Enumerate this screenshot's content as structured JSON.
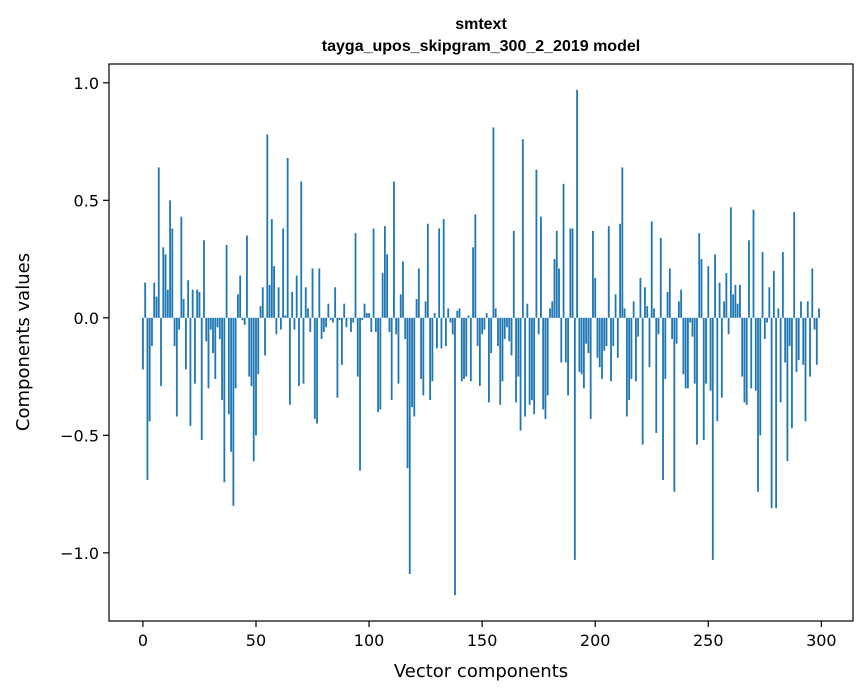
{
  "chart_data": {
    "type": "bar",
    "title_line1": "smtext",
    "title_line2": "tayga_upos_skipgram_300_2_2019 model",
    "xlabel": "Vector components",
    "ylabel": "Components values",
    "xlim": [
      -15,
      314
    ],
    "ylim": [
      -1.29,
      1.08
    ],
    "xticks": [
      0,
      50,
      100,
      150,
      200,
      250,
      300
    ],
    "xtick_labels": [
      "0",
      "50",
      "100",
      "150",
      "200",
      "250",
      "300"
    ],
    "yticks": [
      -1.0,
      -0.5,
      0.0,
      0.5,
      1.0
    ],
    "ytick_labels": [
      "−1.0",
      "−0.5",
      "0.0",
      "0.5",
      "1.0"
    ],
    "bar_color": "#1f77b4",
    "values": [
      -0.22,
      0.15,
      -0.69,
      -0.44,
      -0.12,
      0.15,
      0.09,
      0.64,
      -0.29,
      0.3,
      0.27,
      0.12,
      0.5,
      0.38,
      -0.12,
      -0.42,
      -0.05,
      0.43,
      0.08,
      -0.22,
      0.16,
      -0.46,
      0.12,
      -0.28,
      0.12,
      0.11,
      -0.52,
      0.33,
      -0.1,
      -0.3,
      -0.05,
      -0.15,
      -0.26,
      -0.04,
      -0.09,
      -0.35,
      -0.7,
      0.31,
      -0.41,
      -0.57,
      -0.8,
      -0.3,
      0.1,
      0.18,
      -0.01,
      -0.03,
      0.35,
      -0.25,
      -0.29,
      -0.61,
      -0.5,
      -0.24,
      0.05,
      0.13,
      -0.16,
      0.78,
      0.14,
      0.42,
      0.22,
      -0.07,
      0.13,
      -0.05,
      0.38,
      0.01,
      0.68,
      -0.37,
      0.11,
      -0.05,
      0.18,
      -0.29,
      0.58,
      -0.28,
      0.13,
      0.04,
      -0.06,
      0.21,
      -0.43,
      -0.45,
      0.21,
      -0.09,
      -0.06,
      -0.04,
      0.06,
      -0.01,
      -0.02,
      0.13,
      -0.34,
      -0.01,
      -0.2,
      0.06,
      -0.04,
      0.0,
      -0.06,
      -0.02,
      0.36,
      -0.25,
      -0.65,
      -0.01,
      0.06,
      0.02,
      0.02,
      -0.06,
      0.38,
      -0.06,
      -0.4,
      -0.39,
      0.19,
      0.39,
      0.27,
      -0.06,
      -0.35,
      0.58,
      -0.07,
      -0.28,
      0.1,
      0.24,
      -0.09,
      -0.64,
      -1.09,
      -0.38,
      -0.42,
      0.08,
      0.21,
      -0.26,
      -0.33,
      0.07,
      0.4,
      -0.35,
      -0.27,
      0.02,
      -0.13,
      0.38,
      -0.13,
      0.42,
      -0.12,
      0.04,
      -0.02,
      -0.07,
      -1.18,
      0.03,
      0.04,
      -0.27,
      -0.26,
      -0.25,
      0.01,
      -0.27,
      0.3,
      0.44,
      -0.12,
      -0.29,
      -0.07,
      -0.05,
      0.02,
      -0.36,
      -0.15,
      0.81,
      0.04,
      -0.12,
      -0.37,
      -0.27,
      -0.09,
      -0.04,
      -0.1,
      -0.16,
      0.37,
      -0.36,
      -0.25,
      -0.48,
      0.76,
      -0.42,
      0.06,
      -0.37,
      -0.35,
      -0.41,
      0.63,
      -0.07,
      0.43,
      -0.39,
      -0.43,
      -0.33,
      0.04,
      0.07,
      0.25,
      0.37,
      0.21,
      -0.19,
      0.57,
      -0.19,
      -0.33,
      0.38,
      0.38,
      -1.03,
      0.97,
      -0.23,
      -0.24,
      -0.3,
      -0.11,
      -0.15,
      -0.43,
      0.37,
      0.17,
      -0.17,
      -0.21,
      -0.26,
      -0.14,
      -0.12,
      0.39,
      -0.27,
      -0.12,
      0.1,
      -0.17,
      0.4,
      0.64,
      0.04,
      -0.42,
      -0.35,
      -0.26,
      0.07,
      -0.27,
      -0.08,
      0.17,
      -0.54,
      0.13,
      0.05,
      -0.21,
      0.41,
      0.04,
      -0.49,
      -0.07,
      0.34,
      -0.69,
      -0.26,
      0.11,
      0.21,
      -0.09,
      -0.74,
      -0.11,
      0.07,
      0.12,
      -0.24,
      -0.3,
      -0.3,
      -0.02,
      -0.08,
      -0.28,
      -0.54,
      0.36,
      0.25,
      -0.52,
      -0.28,
      0.22,
      -0.31,
      -1.03,
      0.27,
      -0.44,
      0.15,
      -0.34,
      0.07,
      0.19,
      -0.07,
      0.47,
      0.1,
      0.14,
      0.06,
      0.14,
      -0.25,
      -0.36,
      -0.37,
      0.33,
      -0.3,
      0.46,
      -0.31,
      -0.74,
      -0.5,
      0.28,
      -0.09,
      -0.02,
      0.13,
      -0.81,
      0.2,
      -0.81,
      0.04,
      -0.36,
      0.28,
      -0.19,
      -0.61,
      -0.12,
      -0.47,
      0.45,
      -0.23,
      -0.18,
      0.07,
      -0.2,
      -0.44,
      0.07,
      -0.25,
      0.21,
      -0.05,
      -0.2,
      0.04
    ]
  }
}
